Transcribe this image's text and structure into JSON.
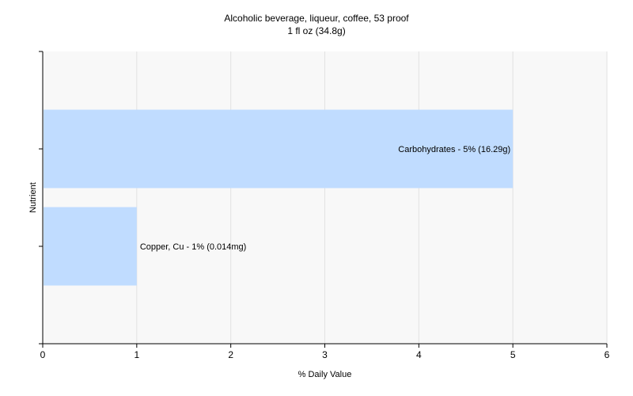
{
  "chart_data": {
    "type": "bar",
    "orientation": "horizontal",
    "title": "Alcoholic beverage, liqueur, coffee, 53 proof",
    "subtitle": "1 fl oz (34.8g)",
    "xlabel": "% Daily Value",
    "ylabel": "Nutrient",
    "xlim": [
      0,
      6
    ],
    "xticks": [
      "0",
      "1",
      "2",
      "3",
      "4",
      "5",
      "6"
    ],
    "grid": true,
    "categories": [
      "Carbohydrates",
      "Copper, Cu"
    ],
    "values": [
      5,
      1
    ],
    "bar_labels": [
      "Carbohydrates - 5% (16.29g)",
      "Copper, Cu - 1% (0.014mg)"
    ],
    "bar_color": "#c0dcff",
    "plot_background": "#f8f8f8",
    "grid_color": "#e2e2e2"
  }
}
